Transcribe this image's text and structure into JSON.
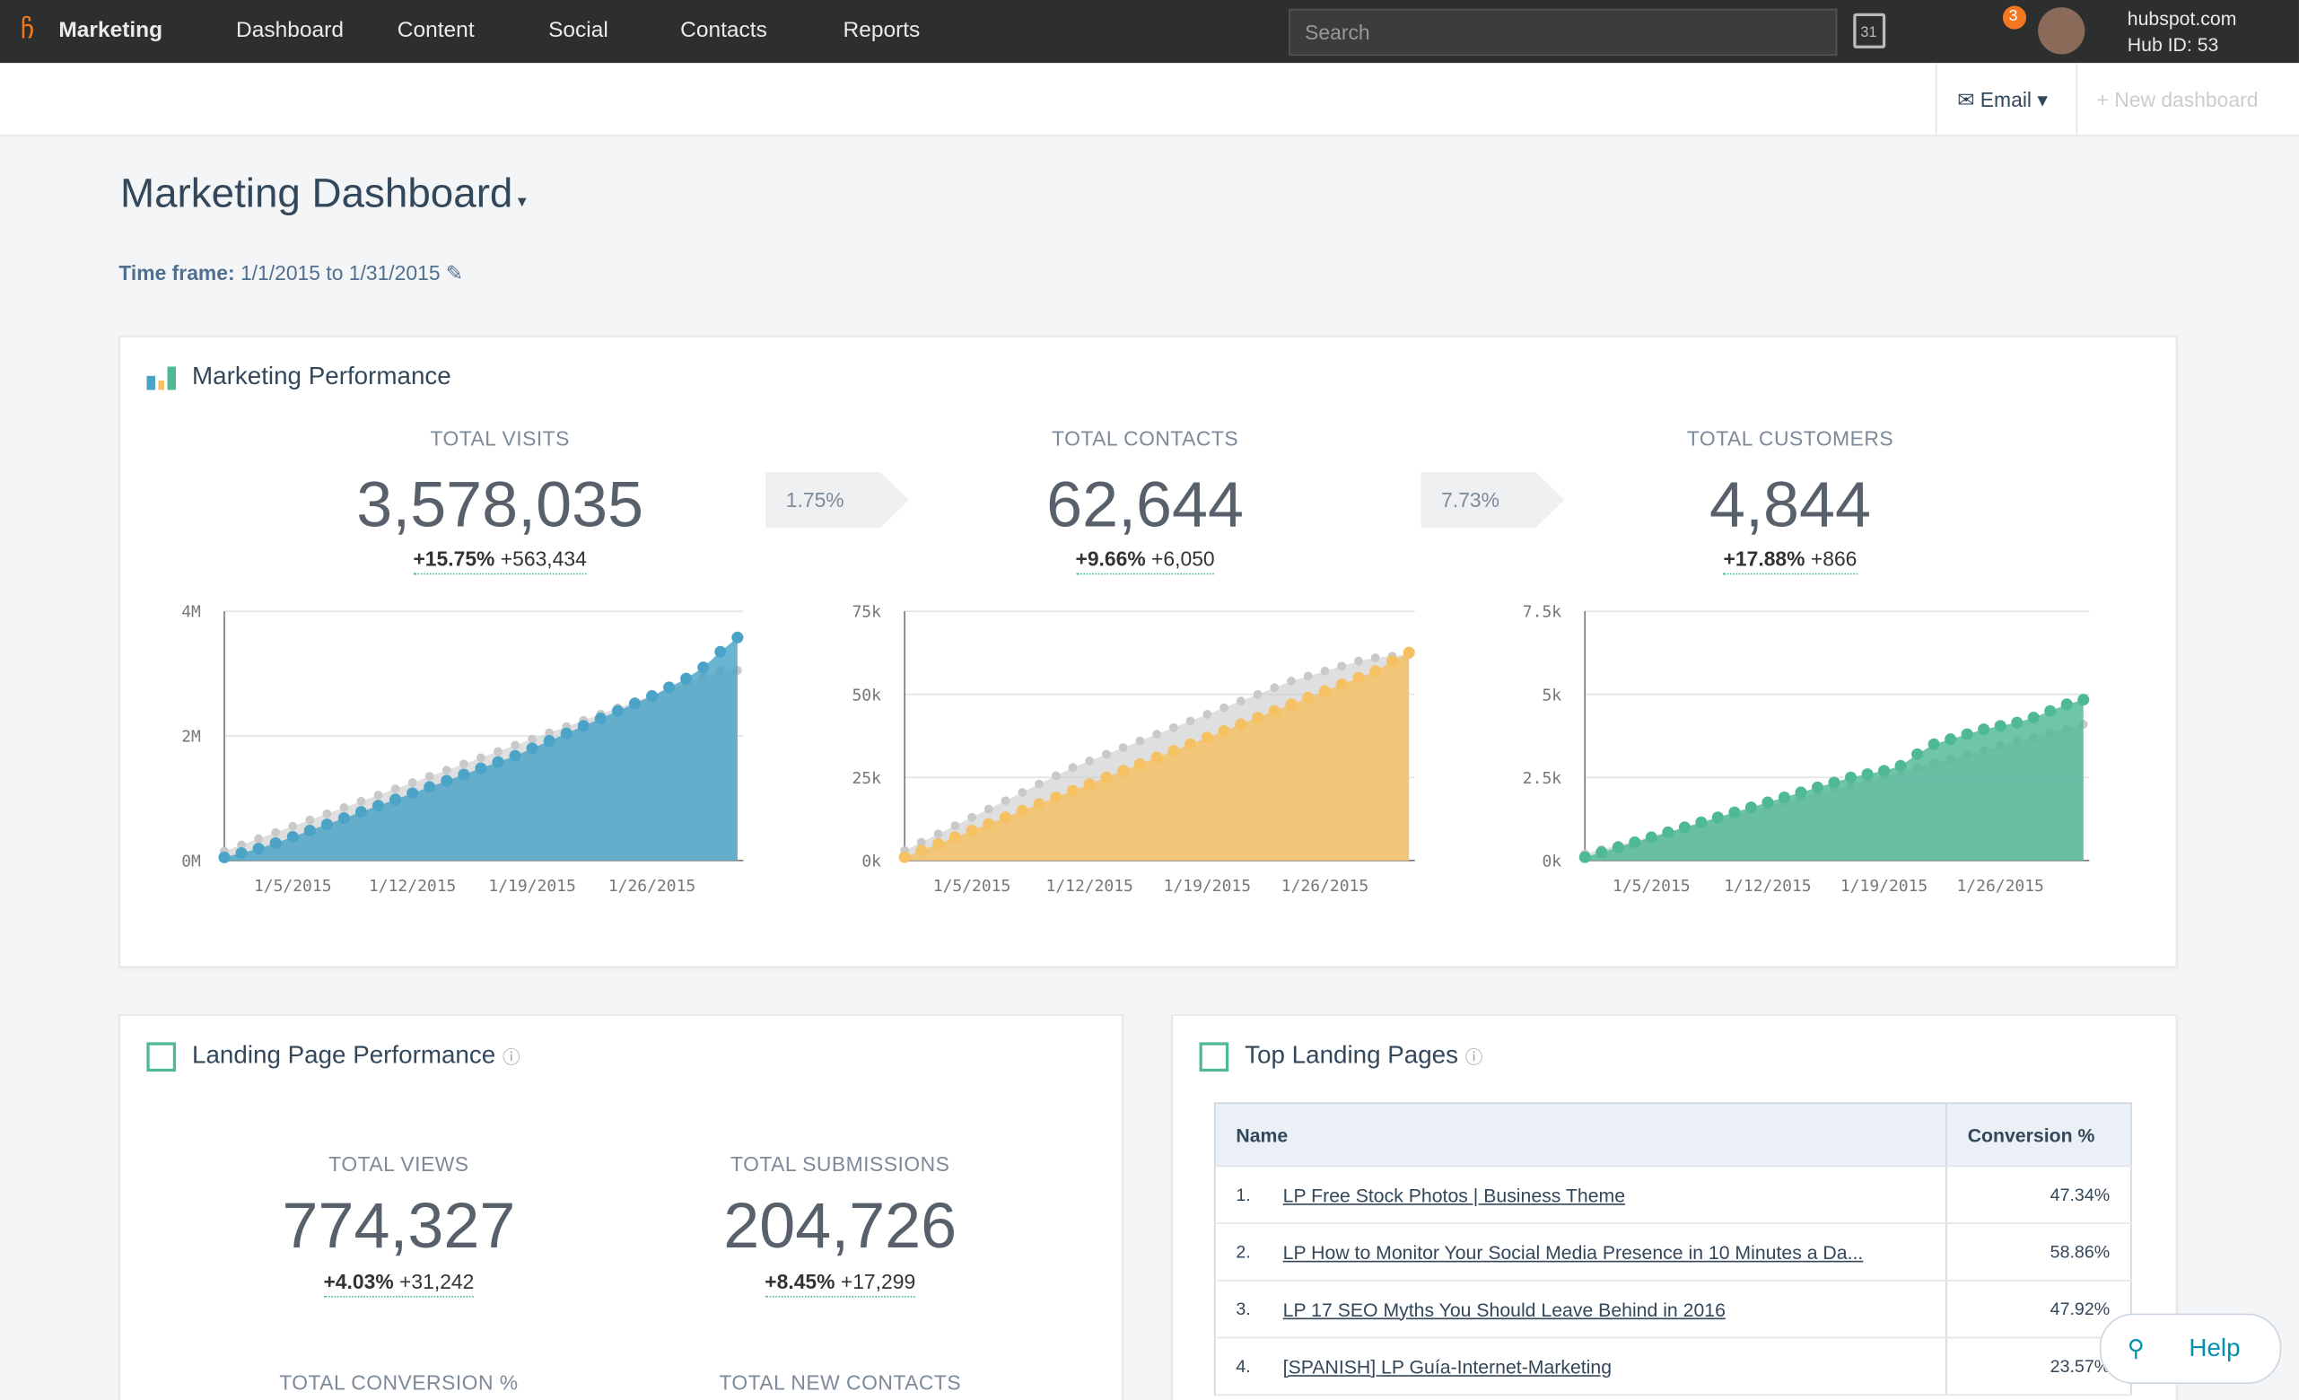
{
  "nav": {
    "brand": "Marketing",
    "items": [
      "Dashboard",
      "Content",
      "Social",
      "Contacts",
      "Reports"
    ],
    "search": "Search",
    "badge": "3",
    "calendar": "31",
    "account": "hubspot.com",
    "hub": "Hub ID: 53"
  },
  "toolbar": {
    "email": "Email",
    "new": "New dashboard"
  },
  "header": {
    "title": "Marketing Dashboard",
    "timeframe_label": "Time frame:",
    "timeframe": "1/1/2015 to 1/31/2015"
  },
  "performance": {
    "title": "Marketing Performance",
    "metrics": [
      {
        "label": "TOTAL VISITS",
        "value": "3,578,035",
        "pct": "+15.75%",
        "abs": "+563,434"
      },
      {
        "label": "TOTAL CONTACTS",
        "value": "62,644",
        "pct": "+9.66%",
        "abs": "+6,050"
      },
      {
        "label": "TOTAL CUSTOMERS",
        "value": "4,844",
        "pct": "+17.88%",
        "abs": "+866"
      }
    ],
    "rates": [
      "1.75%",
      "7.73%"
    ],
    "charts": [
      {
        "type": "area",
        "categories": [
          null,
          null,
          null,
          null,
          "1/5/2015",
          null,
          null,
          null,
          null,
          null,
          null,
          "1/12/2015",
          null,
          null,
          null,
          null,
          null,
          null,
          "1/19/2015",
          null,
          null,
          null,
          null,
          null,
          null,
          "1/26/2015",
          null,
          null,
          null,
          null,
          null
        ],
        "ylim": [
          0,
          4
        ],
        "yticks": [
          {
            "value": 0,
            "label": "0M"
          },
          {
            "value": 2,
            "label": "2M"
          },
          {
            "value": 4,
            "label": "4M"
          }
        ],
        "series": [
          {
            "color": "#c9c9c9",
            "values": [
              0.15,
              0.25,
              0.35,
              0.45,
              0.55,
              0.65,
              0.75,
              0.85,
              0.95,
              1.05,
              1.15,
              1.25,
              1.35,
              1.45,
              1.55,
              1.65,
              1.75,
              1.85,
              1.95,
              2.05,
              2.15,
              2.25,
              2.35,
              2.45,
              2.55,
              2.65,
              2.75,
              2.85,
              2.95,
              3.05,
              3.05
            ]
          },
          {
            "color": "#4ba3c7",
            "values": [
              0.05,
              0.12,
              0.19,
              0.28,
              0.38,
              0.48,
              0.58,
              0.68,
              0.78,
              0.88,
              0.98,
              1.08,
              1.18,
              1.28,
              1.38,
              1.48,
              1.58,
              1.68,
              1.8,
              1.92,
              2.04,
              2.16,
              2.28,
              2.4,
              2.52,
              2.64,
              2.78,
              2.92,
              3.1,
              3.35,
              3.58
            ]
          }
        ]
      },
      {
        "type": "area",
        "categories": [
          null,
          null,
          null,
          null,
          "1/5/2015",
          null,
          null,
          null,
          null,
          null,
          null,
          "1/12/2015",
          null,
          null,
          null,
          null,
          null,
          null,
          "1/19/2015",
          null,
          null,
          null,
          null,
          null,
          null,
          "1/26/2015",
          null,
          null,
          null,
          null,
          null
        ],
        "ylim": [
          0,
          75
        ],
        "yticks": [
          {
            "value": 0,
            "label": "0k"
          },
          {
            "value": 25,
            "label": "25k"
          },
          {
            "value": 50,
            "label": "50k"
          },
          {
            "value": 75,
            "label": "75k"
          }
        ],
        "series": [
          {
            "color": "#c9c9c9",
            "values": [
              3,
              5.5,
              8,
              10.5,
              13,
              15.5,
              18,
              20.5,
              23,
              25.5,
              28,
              30,
              32,
              34,
              36,
              38,
              40,
              42,
              44,
              46,
              48,
              50,
              52,
              54,
              55.5,
              57,
              58.5,
              60,
              61,
              61.5,
              62
            ]
          },
          {
            "color": "#f5c163",
            "values": [
              1,
              3,
              5,
              7,
              9,
              11,
              13,
              15,
              17,
              19,
              21,
              23,
              25,
              27,
              29,
              31,
              33,
              35,
              37,
              39,
              41,
              43,
              45,
              47,
              49,
              51,
              53,
              55,
              57,
              60,
              62.6
            ]
          }
        ]
      },
      {
        "type": "area",
        "categories": [
          null,
          null,
          null,
          null,
          "1/5/2015",
          null,
          null,
          null,
          null,
          null,
          null,
          "1/12/2015",
          null,
          null,
          null,
          null,
          null,
          null,
          "1/19/2015",
          null,
          null,
          null,
          null,
          null,
          null,
          "1/26/2015",
          null,
          null,
          null,
          null,
          null
        ],
        "ylim": [
          0,
          7.5
        ],
        "yticks": [
          {
            "value": 0,
            "label": "0k"
          },
          {
            "value": 2.5,
            "label": "2.5k"
          },
          {
            "value": 5,
            "label": "5k"
          },
          {
            "value": 7.5,
            "label": "7.5k"
          }
        ],
        "series": [
          {
            "color": "#c9c9c9",
            "values": [
              0.2,
              0.33,
              0.46,
              0.59,
              0.72,
              0.85,
              0.98,
              1.11,
              1.24,
              1.37,
              1.5,
              1.63,
              1.76,
              1.89,
              2.02,
              2.15,
              2.28,
              2.41,
              2.54,
              2.67,
              2.8,
              2.93,
              3.06,
              3.19,
              3.32,
              3.45,
              3.58,
              3.71,
              3.84,
              3.97,
              4.1
            ]
          },
          {
            "color": "#4fb897",
            "values": [
              0.1,
              0.25,
              0.4,
              0.55,
              0.7,
              0.85,
              1.0,
              1.15,
              1.3,
              1.45,
              1.6,
              1.75,
              1.9,
              2.05,
              2.2,
              2.35,
              2.5,
              2.6,
              2.7,
              2.85,
              3.2,
              3.5,
              3.65,
              3.8,
              3.95,
              4.05,
              4.15,
              4.3,
              4.5,
              4.7,
              4.84
            ]
          }
        ]
      }
    ]
  },
  "landing": {
    "title": "Landing Page Performance",
    "metrics": [
      {
        "label": "TOTAL VIEWS",
        "value": "774,327",
        "pct": "+4.03%",
        "abs": "+31,242"
      },
      {
        "label": "TOTAL SUBMISSIONS",
        "value": "204,726",
        "pct": "+8.45%",
        "abs": "+17,299"
      }
    ],
    "more": [
      "TOTAL CONVERSION %",
      "TOTAL NEW CONTACTS"
    ]
  },
  "top_pages": {
    "title": "Top Landing Pages",
    "columns": [
      "Name",
      "Conversion %"
    ],
    "rows": [
      [
        "1.",
        "LP Free Stock Photos | Business Theme",
        "47.34%"
      ],
      [
        "2.",
        "LP How to Monitor Your Social Media Presence in 10 Minutes a Da...",
        "58.86%"
      ],
      [
        "3.",
        "LP 17 SEO Myths You Should Leave Behind in 2016",
        "47.92%"
      ],
      [
        "4.",
        "[SPANISH] LP Guía-Internet-Marketing",
        "23.57%"
      ]
    ]
  },
  "help": "Help"
}
